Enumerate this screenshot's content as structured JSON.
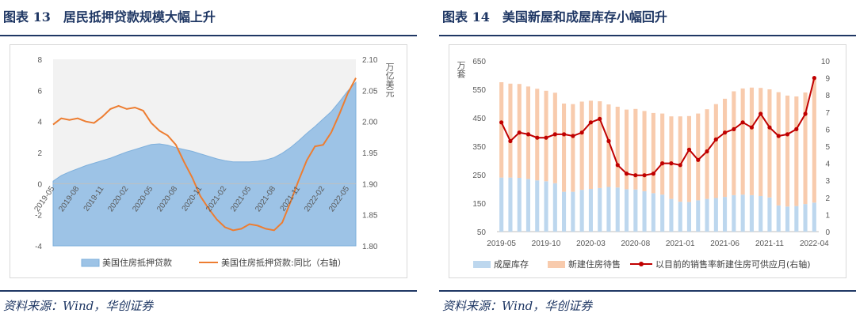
{
  "left": {
    "title": "图表 13　居民抵押贷款规模大幅上升",
    "source": "资料来源：Wind，华创证券",
    "chart_data": {
      "type": "area",
      "dates": [
        "2019-05",
        "2019-06",
        "2019-07",
        "2019-08",
        "2019-09",
        "2019-10",
        "2019-11",
        "2019-12",
        "2020-01",
        "2020-02",
        "2020-03",
        "2020-04",
        "2020-05",
        "2020-06",
        "2020-07",
        "2020-08",
        "2020-09",
        "2020-10",
        "2020-11",
        "2020-12",
        "2021-01",
        "2021-02",
        "2021-03",
        "2021-04",
        "2021-05",
        "2021-06",
        "2021-07",
        "2021-08",
        "2021-09",
        "2021-10",
        "2021-11",
        "2021-12",
        "2022-01",
        "2022-02",
        "2022-03",
        "2022-04",
        "2022-05",
        "2022-06"
      ],
      "x_tick_labels": [
        "2019-05",
        "2019-08",
        "2019-11",
        "2020-02",
        "2020-05",
        "2020-08",
        "2020-11",
        "2021-02",
        "2021-05",
        "2021-08",
        "2021-11",
        "2022-02",
        "2022-05"
      ],
      "y_left_ticks": [
        "8",
        "6",
        "4",
        "2",
        "0",
        "-2",
        "-4"
      ],
      "y_right_ticks": [
        "2.10",
        "2.05",
        "2.00",
        "1.95",
        "1.90",
        "1.85",
        "1.80"
      ],
      "y_left_range": [
        -4,
        8
      ],
      "y_right_range": [
        1.8,
        2.1
      ],
      "y_right_label": "万亿美元",
      "series": [
        {
          "name": "美国住房抵押贷款",
          "axis": "right",
          "color": "#9dc3e6",
          "values": [
            1.904,
            1.913,
            1.919,
            1.924,
            1.929,
            1.933,
            1.937,
            1.941,
            1.946,
            1.951,
            1.955,
            1.959,
            1.963,
            1.964,
            1.962,
            1.958,
            1.955,
            1.952,
            1.948,
            1.944,
            1.94,
            1.937,
            1.935,
            1.935,
            1.935,
            1.936,
            1.938,
            1.942,
            1.949,
            1.958,
            1.969,
            1.981,
            1.992,
            2.004,
            2.016,
            2.032,
            2.049,
            2.063
          ]
        },
        {
          "name": "美国住房抵押贷款:同比（右轴）",
          "axis": "left",
          "color": "#ed7d31",
          "values": [
            3.8,
            4.2,
            4.1,
            4.2,
            4.0,
            3.9,
            4.3,
            4.8,
            5.0,
            4.8,
            4.9,
            4.7,
            3.9,
            3.4,
            3.1,
            2.5,
            1.4,
            0.4,
            -0.8,
            -1.6,
            -2.3,
            -2.8,
            -3.0,
            -2.9,
            -2.6,
            -2.7,
            -2.9,
            -3.0,
            -2.5,
            -1.2,
            0.2,
            1.5,
            2.4,
            2.5,
            3.3,
            4.5,
            5.8,
            6.8
          ]
        }
      ]
    }
  },
  "right": {
    "title": "图表 14　美国新屋和成屋库存小幅回升",
    "source": "资料来源：Wind，华创证券",
    "chart_data": {
      "type": "bar",
      "dates": [
        "2019-05",
        "2019-06",
        "2019-07",
        "2019-08",
        "2019-09",
        "2019-10",
        "2019-11",
        "2019-12",
        "2020-01",
        "2020-02",
        "2020-03",
        "2020-04",
        "2020-05",
        "2020-06",
        "2020-07",
        "2020-08",
        "2020-09",
        "2020-10",
        "2020-11",
        "2020-12",
        "2021-01",
        "2021-02",
        "2021-03",
        "2021-04",
        "2021-05",
        "2021-06",
        "2021-07",
        "2021-08",
        "2021-09",
        "2021-10",
        "2021-11",
        "2021-12",
        "2022-01",
        "2022-02",
        "2022-03",
        "2022-04"
      ],
      "x_tick_labels": [
        "2019-05",
        "2019-10",
        "2020-03",
        "2020-08",
        "2021-01",
        "2021-06",
        "2021-11",
        "2022-04"
      ],
      "y_left_ticks": [
        "650",
        "550",
        "450",
        "350",
        "250",
        "150",
        "50"
      ],
      "y_right_ticks": [
        "10",
        "9",
        "8",
        "7",
        "6",
        "5",
        "4",
        "3",
        "2",
        "1",
        "0"
      ],
      "y_left_range": [
        50,
        650
      ],
      "y_right_range": [
        0,
        10
      ],
      "y_left_label": "万套",
      "series": [
        {
          "name": "成屋库存",
          "axis": "left",
          "color": "#bdd7ee",
          "values": [
            190,
            190,
            189,
            185,
            180,
            177,
            170,
            140,
            140,
            147,
            150,
            153,
            157,
            155,
            149,
            148,
            142,
            135,
            130,
            115,
            105,
            104,
            110,
            115,
            118,
            122,
            128,
            130,
            128,
            125,
            120,
            92,
            88,
            90,
            97,
            102
          ]
        },
        {
          "name": "新建住房待售",
          "axis": "left",
          "color": "#f8cbad",
          "values": [
            335,
            330,
            330,
            325,
            322,
            318,
            318,
            310,
            308,
            310,
            310,
            305,
            290,
            284,
            280,
            283,
            282,
            282,
            285,
            290,
            300,
            302,
            305,
            315,
            330,
            345,
            365,
            373,
            378,
            380,
            380,
            398,
            390,
            385,
            392,
            440
          ]
        },
        {
          "name": "以目前的销售率新建住房可供应月(右轴)",
          "axis": "right",
          "color": "#c00000",
          "values": [
            6.4,
            5.3,
            5.8,
            5.7,
            5.5,
            5.5,
            5.7,
            5.7,
            5.6,
            5.8,
            6.4,
            6.6,
            5.3,
            3.9,
            3.4,
            3.3,
            3.3,
            3.4,
            4.0,
            4.0,
            3.9,
            4.8,
            4.2,
            4.7,
            5.4,
            5.8,
            6.0,
            6.4,
            6.1,
            6.9,
            6.1,
            5.6,
            5.7,
            6.0,
            6.9,
            9.0
          ]
        }
      ]
    }
  }
}
